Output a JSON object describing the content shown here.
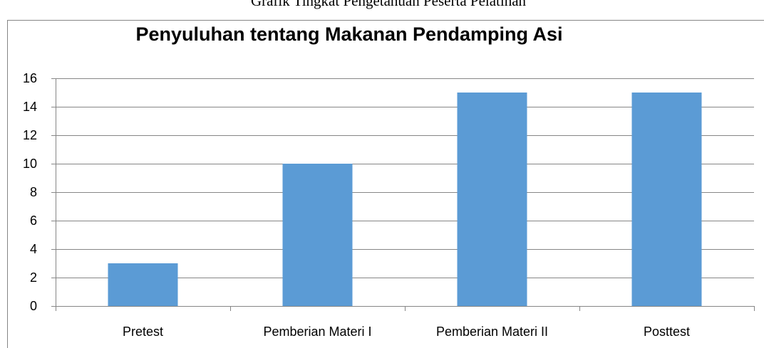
{
  "caption": "Grafik Tingkat Pengetahuan Peserta Pelatihan",
  "chart_data": {
    "type": "bar",
    "title": "Penyuluhan tentang Makanan Pendamping Asi",
    "categories": [
      "Pretest",
      "Pemberian Materi I",
      "Pemberian Materi II",
      "Posttest"
    ],
    "values": [
      3,
      10,
      15,
      15
    ],
    "color": "#5b9bd5",
    "ylim": [
      0,
      16
    ],
    "yticks": [
      0,
      2,
      4,
      6,
      8,
      10,
      12,
      14,
      16
    ],
    "grid": true
  }
}
